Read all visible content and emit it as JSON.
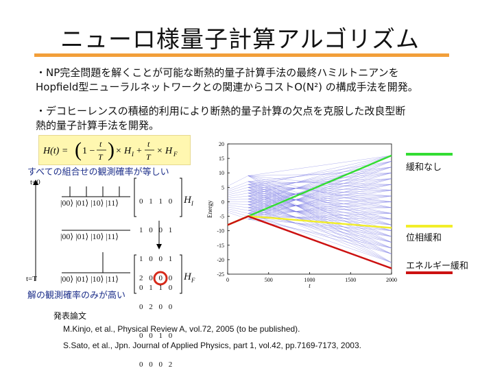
{
  "slide": {
    "title": "ニューロ様量子計算アルゴリズム",
    "bullets": [
      "・NP完全問題を解くことが可能な断熱的量子計算手法の最終ハミルトニアンを",
      "Hopfield型ニューラルネットワークとの関連からコストO(N²) の構成手法を開発。",
      "・デコヒーレンスの積極的利用により断熱的量子計算の欠点を克服した改良型断",
      "熱的量子計算手法を開発。"
    ],
    "diagram": {
      "caption_top": "すべての組合せの観測確率が等しい",
      "caption_bottom": "解の観測確率のみが高い",
      "t_start": "t=0",
      "t_end": "t=T",
      "states": [
        "|00⟩",
        "|01⟩",
        "|10⟩",
        "|11⟩"
      ],
      "matrix_HI": [
        "0 1 1 0",
        "1 0 0 1",
        "1 0 0 1",
        "0 1 1 0"
      ],
      "matrix_HF": [
        "2 0 0 0",
        "0 2 0 0",
        "0 0 1 0",
        "0 0 0 2"
      ],
      "label_HI": "H",
      "label_HI_sub": "I",
      "label_HF": "H",
      "label_HF_sub": "F",
      "highlight_color": "#d62a1a"
    },
    "references": {
      "heading": "発表論文",
      "items": [
        "M.Kinjo, et al., Physical Review A, vol.72, 2005 (to be published).",
        "S.Sato, et al., Jpn. Journal of Applied Physics, part 1, vol.42, pp.7169-7173, 2003."
      ]
    },
    "legend": [
      {
        "label": "緩和なし",
        "color": "#33dd33"
      },
      {
        "label": "位相緩和",
        "color": "#f2ee2a"
      },
      {
        "label": "エネルギー緩和",
        "color": "#cc1111"
      }
    ],
    "accent_color": "#f29f3a"
  },
  "chart_data": {
    "type": "line",
    "xlabel": "t",
    "ylabel": "Energy",
    "xlim": [
      0,
      2000
    ],
    "ylim": [
      -25,
      20
    ],
    "xticks": [
      0,
      500,
      1000,
      1500,
      2000
    ],
    "yticks": [
      -25,
      -20,
      -15,
      -10,
      -5,
      0,
      5,
      10,
      15,
      20
    ],
    "series": [
      {
        "name": "緩和なし",
        "color": "#33dd33",
        "x": [
          0,
          250,
          2000
        ],
        "y": [
          -8,
          -5,
          16
        ]
      },
      {
        "name": "位相緩和",
        "color": "#f2ee2a",
        "x": [
          0,
          250,
          500,
          2000
        ],
        "y": [
          -8,
          -5,
          -5.5,
          -9
        ]
      },
      {
        "name": "エネルギー緩和",
        "color": "#cc1111",
        "x": [
          0,
          250,
          2000
        ],
        "y": [
          -8,
          -5,
          -23
        ]
      }
    ],
    "fan": {
      "color": "#6a6ae0",
      "start_levels": [
        9,
        7,
        6,
        5,
        4,
        3,
        2,
        1,
        0,
        -1,
        -2,
        -3,
        -4,
        -5,
        -6
      ],
      "end_levels": [
        16,
        14,
        12,
        10,
        8,
        6,
        4,
        2,
        0,
        -2,
        -4,
        -6,
        -8,
        -10,
        -12,
        -14,
        -16,
        -18,
        -21
      ]
    }
  }
}
